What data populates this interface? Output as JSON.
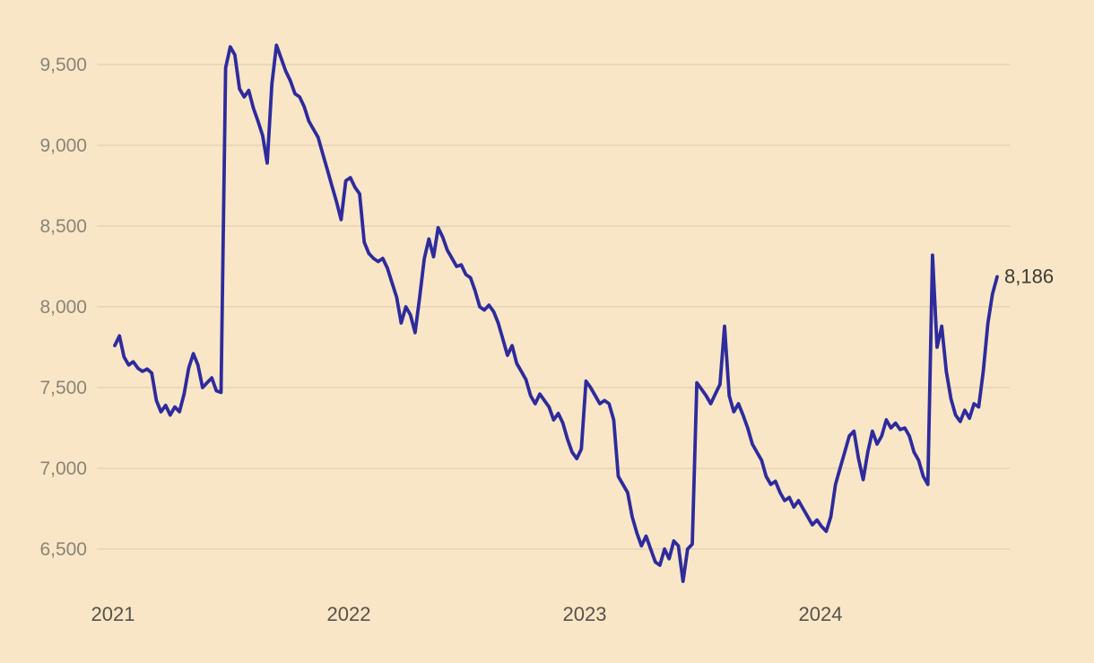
{
  "chart_data": {
    "type": "line",
    "title": "",
    "xlabel": "",
    "ylabel": "",
    "grid": "horizontal",
    "legend": "none",
    "x_tick_labels": [
      "2021",
      "2022",
      "2023",
      "2024"
    ],
    "y_tick_labels": [
      "9,500",
      "9,000",
      "8,500",
      "8,000",
      "7,500",
      "7,000",
      "6,500"
    ],
    "y_ticks": [
      9500,
      9000,
      8500,
      8000,
      7500,
      7000,
      6500
    ],
    "ylim": [
      6300,
      9700
    ],
    "x_range_years": [
      2021.02,
      2024.77
    ],
    "last_value": 8186,
    "last_value_label": "8,186",
    "colors": {
      "background": "#f8e6c7",
      "gridline": "#e6d4b4",
      "line": "#2e2b9d",
      "y_axis_label": "#8b8474",
      "x_axis_label": "#57524a",
      "end_label": "#3f3b32"
    },
    "series": [
      {
        "name": "index-value",
        "values": [
          7760,
          7820,
          7690,
          7640,
          7660,
          7620,
          7600,
          7615,
          7590,
          7420,
          7350,
          7390,
          7330,
          7380,
          7350,
          7460,
          7620,
          7710,
          7640,
          7500,
          7530,
          7560,
          7480,
          7470,
          9480,
          9610,
          9560,
          9350,
          9300,
          9340,
          9230,
          9150,
          9060,
          8890,
          9380,
          9620,
          9540,
          9460,
          9400,
          9320,
          9300,
          9240,
          9150,
          9100,
          9050,
          8950,
          8850,
          8750,
          8650,
          8540,
          8780,
          8800,
          8740,
          8700,
          8400,
          8330,
          8300,
          8280,
          8300,
          8240,
          8150,
          8060,
          7900,
          8000,
          7950,
          7840,
          8060,
          8300,
          8420,
          8310,
          8490,
          8430,
          8350,
          8300,
          8250,
          8260,
          8200,
          8180,
          8100,
          8000,
          7980,
          8010,
          7970,
          7900,
          7800,
          7700,
          7760,
          7650,
          7600,
          7550,
          7450,
          7400,
          7460,
          7420,
          7380,
          7300,
          7340,
          7280,
          7180,
          7100,
          7060,
          7120,
          7540,
          7500,
          7450,
          7400,
          7420,
          7400,
          7300,
          6950,
          6900,
          6850,
          6700,
          6600,
          6520,
          6580,
          6500,
          6420,
          6400,
          6500,
          6440,
          6550,
          6520,
          6300,
          6500,
          6530,
          7530,
          7490,
          7450,
          7400,
          7460,
          7520,
          7880,
          7450,
          7350,
          7400,
          7330,
          7250,
          7150,
          7100,
          7050,
          6950,
          6900,
          6920,
          6850,
          6800,
          6820,
          6760,
          6800,
          6750,
          6700,
          6650,
          6680,
          6640,
          6610,
          6700,
          6900,
          7000,
          7100,
          7200,
          7230,
          7060,
          6930,
          7100,
          7230,
          7150,
          7200,
          7300,
          7250,
          7280,
          7240,
          7250,
          7200,
          7100,
          7050,
          6950,
          6900,
          8320,
          7750,
          7880,
          7600,
          7430,
          7330,
          7290,
          7360,
          7310,
          7400,
          7380,
          7600,
          7900,
          8080,
          8186
        ]
      }
    ]
  }
}
